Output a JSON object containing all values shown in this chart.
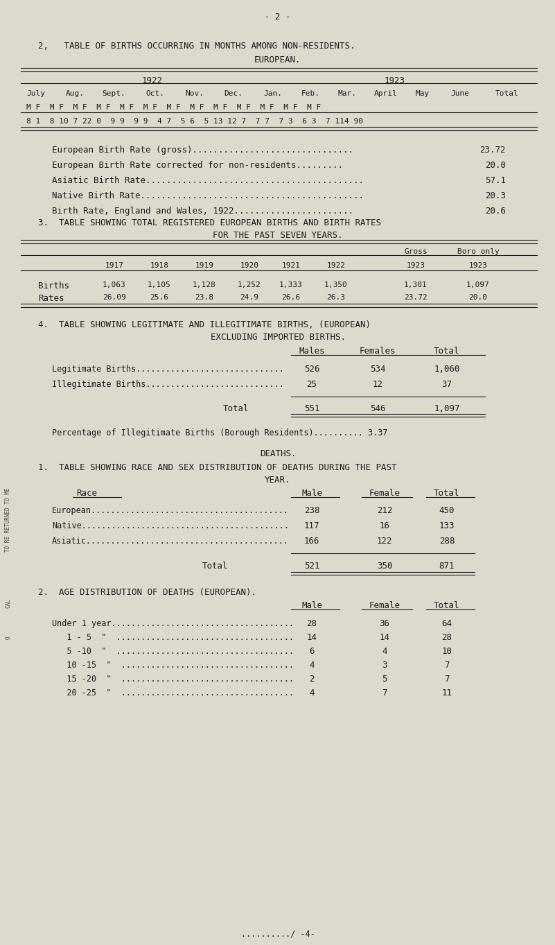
{
  "bg_color": "#ddd9cc",
  "text_color": "#1a1a1a",
  "page_number": "- 2 -",
  "section2_title1": "2,   TABLE OF BIRTHS OCCURRING IN MONTHS AMONG NON-RESIDENTS.",
  "section2_title2": "EUROPEAN.",
  "birth_rates": [
    [
      "European Birth Rate (gross)...............................",
      "23.72"
    ],
    [
      "European Birth Rate corrected for non-residents.........",
      "20.0"
    ],
    [
      "Asiatic Birth Rate..........................................",
      "57.1"
    ],
    [
      "Native Birth Rate...........................................",
      "20.3"
    ],
    [
      "Birth Rate, England and Wales, 1922.......................",
      "20.6"
    ]
  ],
  "section3_title1": "3.  TABLE SHOWING TOTAL REGISTERED EUROPEAN BIRTHS AND BIRTH RATES",
  "section3_title2": "FOR THE PAST SEVEN YEARS.",
  "table3_births": [
    "1,063",
    "1,105",
    "1,128",
    "1,252",
    "1,333",
    "1,350",
    "1,301",
    "1,097"
  ],
  "table3_rates": [
    "26.09",
    "25.6",
    "23.8",
    "24.9",
    "26.6",
    "26.3",
    "23.72",
    "20.0"
  ],
  "section4_title1": "4.  TABLE SHOWING LEGITIMATE AND ILLEGITIMATE BIRTHS, (EUROPEAN)",
  "section4_title2": "EXCLUDING IMPORTED BIRTHS.",
  "table4_rows": [
    [
      "Legitimate Births..............................",
      "526",
      "534",
      "1,060"
    ],
    [
      "Illegitimate Births............................",
      "25",
      "12",
      "37"
    ]
  ],
  "table4_total": [
    "Total",
    "551",
    "546",
    "1,097"
  ],
  "table4_pct": "Percentage of Illegitimate Births (Borough Residents).......... 3.37",
  "deaths_title": "DEATHS.",
  "section_d1_title1": "1.  TABLE SHOWING RACE AND SEX DISTRIBUTION OF DEATHS DURING THE PAST",
  "section_d1_title2": "YEAR.",
  "table_d1_rows": [
    [
      "European........................................",
      "238",
      "212",
      "450"
    ],
    [
      "Native..........................................",
      "117",
      "16",
      "133"
    ],
    [
      "Asiatic.........................................",
      "166",
      "122",
      "288"
    ]
  ],
  "table_d1_total": [
    "Total",
    "521",
    "350",
    "871"
  ],
  "section_d2_title": "2.  AGE DISTRIBUTION OF DEATHS (EUROPEAN).",
  "table_d2_rows": [
    [
      "Under 1 year.....................................",
      "28",
      "36",
      "64"
    ],
    [
      "   1 - 5  \"  ....................................",
      "14",
      "14",
      "28"
    ],
    [
      "   5 -10  \"  ....................................",
      "6",
      "4",
      "10"
    ],
    [
      "   10 -15  \"  ...................................",
      "4",
      "3",
      "7"
    ],
    [
      "   15 -20  \"  ...................................",
      "2",
      "5",
      "7"
    ],
    [
      "   20 -25  \"  ...................................",
      "4",
      "7",
      "11"
    ]
  ],
  "footer": "........../ -4-",
  "side_text1": "TO RE RETURNED TO ME",
  "side_text2": "CAL",
  "side_text3": "O"
}
